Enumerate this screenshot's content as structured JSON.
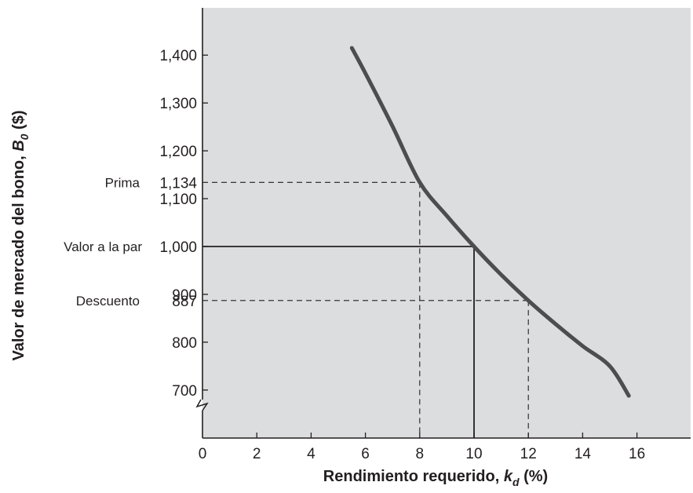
{
  "chart_data": {
    "type": "line",
    "xlabel": {
      "main": "Rendimiento requerido, ",
      "var": "k",
      "sub": "d",
      "tail": " (%)"
    },
    "ylabel": {
      "main": "Valor de mercado del bono, ",
      "var": "B",
      "sub": "0",
      "tail": " ($)"
    },
    "xlim": [
      0,
      18
    ],
    "ylim": [
      580,
      1500
    ],
    "x_ticks": [
      0,
      2,
      4,
      6,
      8,
      10,
      12,
      14,
      16
    ],
    "y_ticks": [
      "700",
      "800",
      "900",
      "1,000",
      "1,100",
      "1,200",
      "1,300",
      "1,400"
    ],
    "y_tick_values": [
      700,
      800,
      900,
      1000,
      1100,
      1200,
      1300,
      1400
    ],
    "axis_break": true,
    "grid": false,
    "background_color": "#dcdddf",
    "curve_color": "#4d4d4f",
    "series": [
      {
        "x": [
          5.5,
          6,
          7,
          8,
          9,
          10,
          11,
          12,
          13,
          14,
          15,
          15.7
        ],
        "y": [
          1415,
          1362,
          1251,
          1134,
          1064,
          1000,
          941,
          887,
          838,
          792,
          750,
          688
        ]
      }
    ],
    "annotations": [
      {
        "label": "Prima",
        "y_label": "1,134",
        "x": 8,
        "y": 1134,
        "style": "dashed"
      },
      {
        "label": "Valor a la par",
        "y_label": "",
        "x": 10,
        "y": 1000,
        "style": "solid"
      },
      {
        "label": "Descuento",
        "y_label": "887",
        "x": 12,
        "y": 887,
        "style": "dashed"
      }
    ]
  }
}
